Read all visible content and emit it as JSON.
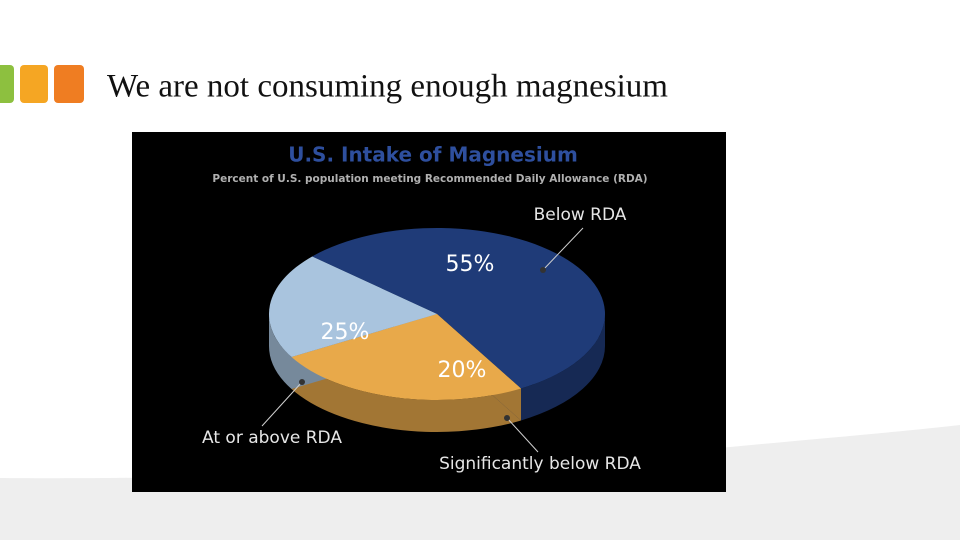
{
  "slide_title": "We are not consuming enough magnesium",
  "chart_data": {
    "type": "pie",
    "title": "U.S. Intake of Magnesium",
    "subtitle": "Percent of U.S. population meeting Recommended Daily Allowance (RDA)",
    "categories": [
      "Below RDA",
      "At or above RDA",
      "Significantly below RDA"
    ],
    "values": [
      55,
      25,
      20
    ],
    "value_labels": [
      "55%",
      "25%",
      "20%"
    ],
    "colors": [
      "#1f3b78",
      "#e8a94a",
      "#a9c4de"
    ]
  }
}
